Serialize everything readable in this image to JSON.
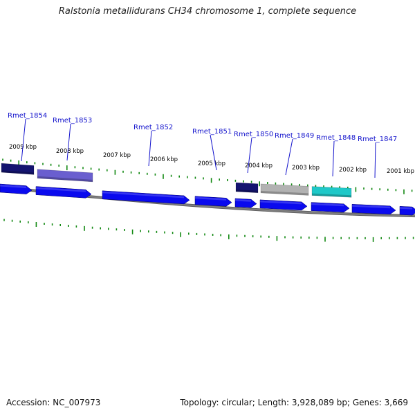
{
  "header": {
    "title": "Ralstonia metallidurans CH34 chromosome 1, complete sequence"
  },
  "footer": {
    "accession": "Accession: NC_007973",
    "summary": "Topology: circular; Length: 3,928,089 bp; Genes: 3,669"
  },
  "colors": {
    "ruler_tick": "#118811",
    "backbone": "#808080",
    "gene_label": "#1212cc",
    "gene_blue": "#0a0aee",
    "gene_navy": "#141470",
    "gene_slate": "#6a5fcf",
    "gene_gray": "#b2b2b2",
    "gene_cyan": "#1ec8c8"
  },
  "chart_data": {
    "type": "genome_map",
    "view_range_kbp": [
      2000.5,
      2009.5
    ],
    "ruler_labels": [
      {
        "kbp": 2009,
        "text": "2009 kbp"
      },
      {
        "kbp": 2008,
        "text": "2008 kbp"
      },
      {
        "kbp": 2007,
        "text": "2007 kbp"
      },
      {
        "kbp": 2006,
        "text": "2006 kbp"
      },
      {
        "kbp": 2005,
        "text": "2005 kbp"
      },
      {
        "kbp": 2004,
        "text": "2004 kbp"
      },
      {
        "kbp": 2003,
        "text": "2003 kbp"
      },
      {
        "kbp": 2002,
        "text": "2002 kbp"
      },
      {
        "kbp": 2001,
        "text": "2001 kbp"
      }
    ],
    "gene_labels": [
      {
        "name": "Rmet_1854"
      },
      {
        "name": "Rmet_1853"
      },
      {
        "name": "Rmet_1852"
      },
      {
        "name": "Rmet_1851"
      },
      {
        "name": "Rmet_1850"
      },
      {
        "name": "Rmet_1849"
      },
      {
        "name": "Rmet_1848"
      },
      {
        "name": "Rmet_1847"
      }
    ],
    "gene_track": [
      {
        "kind": "arrow",
        "color": "gene_blue"
      },
      {
        "kind": "arrow",
        "color": "gene_blue"
      },
      {
        "kind": "arrow",
        "color": "gene_blue"
      },
      {
        "kind": "arrow",
        "color": "gene_blue"
      },
      {
        "kind": "arrow",
        "color": "gene_blue"
      },
      {
        "kind": "arrow",
        "color": "gene_blue"
      },
      {
        "kind": "arrow",
        "color": "gene_blue"
      },
      {
        "kind": "arrow",
        "color": "gene_blue"
      },
      {
        "kind": "arrow",
        "color": "gene_blue"
      }
    ],
    "feature_track": [
      {
        "kind": "box",
        "color": "gene_navy"
      },
      {
        "kind": "box",
        "color": "gene_slate"
      },
      {
        "kind": "box",
        "color": "gene_navy"
      },
      {
        "kind": "box",
        "color": "gene_gray"
      },
      {
        "kind": "box",
        "color": "gene_cyan"
      }
    ]
  }
}
